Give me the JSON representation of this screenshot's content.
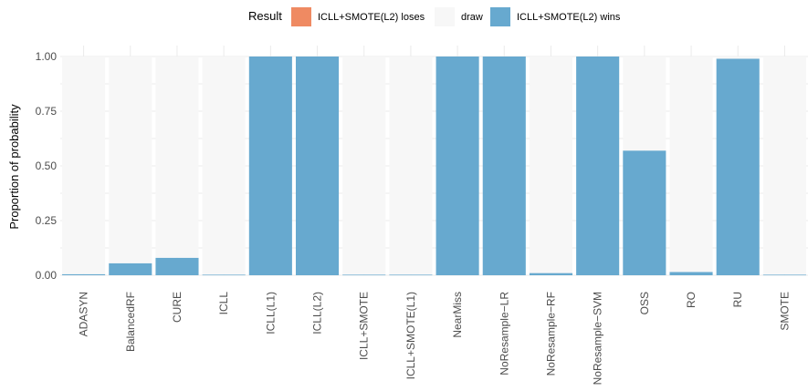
{
  "legend": {
    "title": "Result",
    "items": [
      {
        "label": "ICLL+SMOTE(L2) loses",
        "color": "#EF8A62"
      },
      {
        "label": "draw",
        "color": "#F7F7F7"
      },
      {
        "label": "ICLL+SMOTE(L2) wins",
        "color": "#67A9CF"
      }
    ]
  },
  "chart_data": {
    "type": "bar",
    "stacked": true,
    "title": "",
    "xlabel": "",
    "ylabel": "Proportion of probability",
    "ylim": [
      0,
      1
    ],
    "yticks": [
      "0.00",
      "0.25",
      "0.50",
      "0.75",
      "1.00"
    ],
    "categories": [
      "ADASYN",
      "BalancedRF",
      "CURE",
      "ICLL",
      "ICLL(L1)",
      "ICLL(L2)",
      "ICLL+SMOTE",
      "ICLL+SMOTE(L1)",
      "NearMiss",
      "NoResample−LR",
      "NoResample−RF",
      "NoResample−SVM",
      "OSS",
      "RO",
      "RU",
      "SMOTE"
    ],
    "series": [
      {
        "name": "ICLL+SMOTE(L2) loses",
        "color": "#EF8A62",
        "values": [
          0,
          0,
          0,
          0,
          0,
          0,
          0,
          0,
          0,
          0,
          0,
          0,
          0,
          0,
          0,
          0
        ]
      },
      {
        "name": "draw",
        "color": "#F7F7F7",
        "values": [
          0.995,
          0.945,
          0.92,
          0.997,
          0,
          0,
          0.997,
          0.997,
          0,
          0,
          0.99,
          0,
          0.43,
          0.985,
          0.01,
          0.997
        ]
      },
      {
        "name": "ICLL+SMOTE(L2) wins",
        "color": "#67A9CF",
        "values": [
          0.005,
          0.055,
          0.08,
          0.003,
          1.0,
          1.0,
          0.003,
          0.003,
          1.0,
          1.0,
          0.01,
          1.0,
          0.57,
          0.015,
          0.99,
          0.003
        ]
      }
    ],
    "legend_position": "top",
    "grid": true
  }
}
